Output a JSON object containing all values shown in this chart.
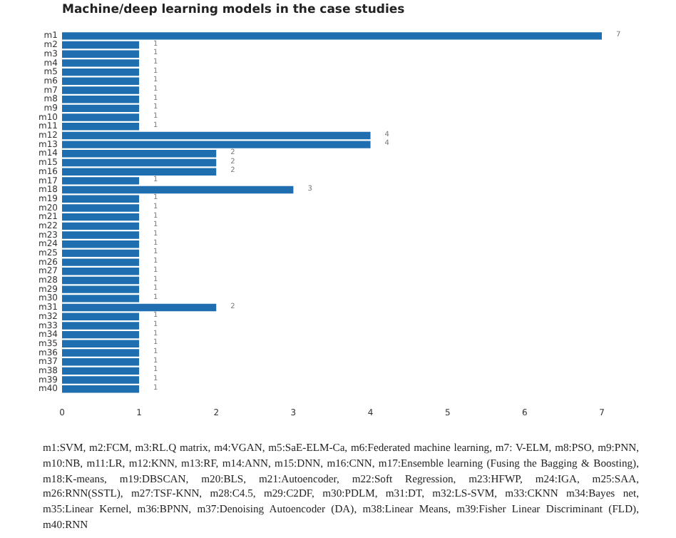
{
  "chart_data": {
    "type": "bar",
    "orientation": "horizontal",
    "title": "Machine/deep learning models in the case studies",
    "categories": [
      "m1",
      "m2",
      "m3",
      "m4",
      "m5",
      "m6",
      "m7",
      "m8",
      "m9",
      "m10",
      "m11",
      "m12",
      "m13",
      "m14",
      "m15",
      "m16",
      "m17",
      "m18",
      "m19",
      "m20",
      "m21",
      "m22",
      "m23",
      "m24",
      "m25",
      "m26",
      "m27",
      "m28",
      "m29",
      "m30",
      "m31",
      "m32",
      "m33",
      "m34",
      "m35",
      "m36",
      "m37",
      "m38",
      "m39",
      "m40"
    ],
    "values": [
      7,
      1,
      1,
      1,
      1,
      1,
      1,
      1,
      1,
      1,
      1,
      4,
      4,
      2,
      2,
      2,
      1,
      3,
      1,
      1,
      1,
      1,
      1,
      1,
      1,
      1,
      1,
      1,
      1,
      1,
      2,
      1,
      1,
      1,
      1,
      1,
      1,
      1,
      1,
      1
    ],
    "color": "#1f6fb0",
    "data_labels": true,
    "xlim": [
      0,
      7
    ],
    "xticks": [
      0,
      1,
      2,
      3,
      4,
      5,
      6,
      7
    ],
    "grid": false,
    "legend": false,
    "annotations": [
      "m1:SVM, m2:FCM, m3:RL.Q matrix, m4:VGAN, m5:SaE-ELM-Ca, m6:Federated machine learning, m7: V-ELM, m8:PSO, m9:PNN, m10:NB, m11:LR, m12:KNN, m13:RF, m14:ANN, m15:DNN, m16:CNN, m17:Ensemble learning (Fusing the Bagging & Boosting), m18:K-means, m19:DBSCAN, m20:BLS, m21:Autoencoder, m22:Soft Regression, m23:HFWP, m24:IGA, m25:SAA, m26:RNN(SSTL), m27:TSF-KNN, m28:C4.5, m29:C2DF, m30:PDLM, m31:DT, m32:LS-SVM, m33:CKNN m34:Bayes net, m35:Linear Kernel, m36:BPNN, m37:Denoising Autoencoder (DA), m38:Linear Means, m39:Fisher Linear Discriminant (FLD), m40:RNN"
    ]
  }
}
